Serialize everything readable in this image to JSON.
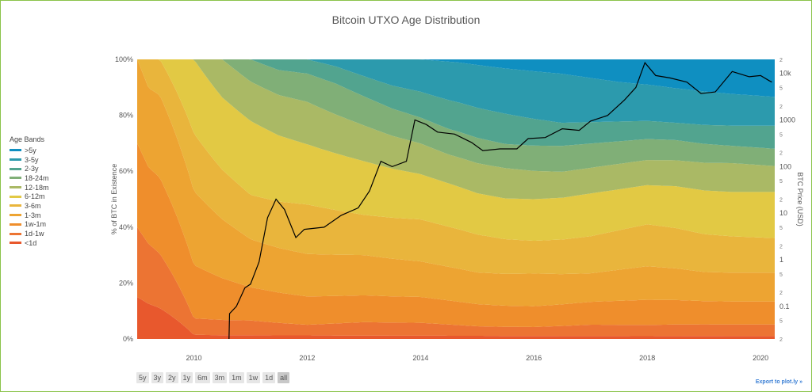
{
  "chart_data": {
    "type": "area",
    "title": "Bitcoin UTXO Age Distribution",
    "ylabel": "% of BTC in Existence",
    "y2label": "BTC Price (USD)",
    "ylim": [
      0,
      100
    ],
    "y_ticks": [
      "0%",
      "20%",
      "40%",
      "60%",
      "80%",
      "100%"
    ],
    "x_ticks": [
      "2010",
      "2012",
      "2014",
      "2016",
      "2018",
      "2020"
    ],
    "xlim": [
      2009.0,
      2020.25
    ],
    "y2_scale": "log",
    "y2lim": [
      0.02,
      20000
    ],
    "y2_major_ticks": [
      "0.1",
      "1",
      "10",
      "100",
      "1000",
      "10k"
    ],
    "y2_minor_tick_label_2": "2",
    "y2_minor_tick_label_5": "5",
    "legend_title": "Age Bands",
    "legend_position": "left",
    "stacking_order_bottom_to_top": [
      "<1d",
      "1d-1w",
      "1w-1m",
      "1-3m",
      "3-6m",
      "6-12m",
      "12-18m",
      "18-24m",
      "2-3y",
      "3-5y",
      ">5y"
    ],
    "series": [
      {
        "name": ">5y",
        "color": "#0f8fc1",
        "x": [
          2009.0,
          2014.0,
          2014.7,
          2015.5,
          2016.5,
          2017.5,
          2018.5,
          2019.5,
          2020.25
        ],
        "values": [
          0,
          0,
          1,
          3,
          5,
          8,
          10,
          12,
          13
        ]
      },
      {
        "name": "3-5y",
        "color": "#2c9aad",
        "x": [
          2009.0,
          2012.0,
          2012.5,
          2013.5,
          2014.5,
          2015.5,
          2016.5,
          2017.5,
          2018.5,
          2019.5,
          2020.25
        ],
        "values": [
          0,
          0,
          2,
          8,
          12,
          15,
          17,
          14,
          12,
          11,
          10
        ]
      },
      {
        "name": "2-3y",
        "color": "#52a48f",
        "x": [
          2009.0,
          2011.0,
          2011.5,
          2013.5,
          2014.5,
          2015.5,
          2016.5,
          2017.5,
          2018.5,
          2019.5,
          2020.25
        ],
        "values": [
          0,
          0,
          3,
          7,
          9,
          10,
          8,
          7,
          6,
          7,
          8
        ]
      },
      {
        "name": "18-24m",
        "color": "#80af77",
        "x": [
          2009.0,
          2010.5,
          2011.0,
          2012.5,
          2014.0,
          2015.5,
          2016.5,
          2017.5,
          2018.5,
          2019.5,
          2020.25
        ],
        "values": [
          0,
          0,
          6,
          9,
          8,
          8,
          9,
          8,
          7,
          6,
          6
        ]
      },
      {
        "name": "12-18m",
        "color": "#aab965",
        "x": [
          2009.0,
          2010.0,
          2010.5,
          2012.0,
          2013.5,
          2014.5,
          2015.5,
          2016.5,
          2017.5,
          2018.5,
          2019.5,
          2020.25
        ],
        "values": [
          0,
          0,
          10,
          12,
          10,
          9,
          10,
          9,
          9,
          9,
          10,
          9
        ]
      },
      {
        "name": "6-12m",
        "color": "#e2c944",
        "x": [
          2009.0,
          2009.4,
          2010.0,
          2011.0,
          2012.0,
          2013.0,
          2014.0,
          2015.0,
          2016.0,
          2017.0,
          2018.0,
          2019.0,
          2020.25
        ],
        "values": [
          0,
          0,
          18,
          20,
          17,
          16,
          14,
          13,
          14,
          15,
          14,
          15,
          16
        ]
      },
      {
        "name": "3-6m",
        "color": "#e9b53c",
        "x": [
          2009.0,
          2009.2,
          2010.0,
          2011.0,
          2012.0,
          2013.0,
          2014.0,
          2015.0,
          2016.0,
          2017.0,
          2018.0,
          2019.0,
          2020.25
        ],
        "values": [
          0,
          10,
          14,
          12,
          14,
          12,
          13,
          12,
          11,
          13,
          15,
          13,
          12
        ]
      },
      {
        "name": "1-3m",
        "color": "#eda432",
        "x": [
          2009.0,
          2010.0,
          2011.0,
          2012.0,
          2013.0,
          2014.0,
          2015.0,
          2016.0,
          2017.0,
          2018.0,
          2019.0,
          2020.25
        ],
        "values": [
          30,
          18,
          13,
          12,
          12,
          11,
          10,
          11,
          10,
          12,
          10,
          10
        ]
      },
      {
        "name": "1w-1m",
        "color": "#ef8e2c",
        "x": [
          2009.0,
          2010.0,
          2011.0,
          2012.0,
          2013.0,
          2014.0,
          2015.0,
          2016.0,
          2017.0,
          2018.0,
          2019.0,
          2020.25
        ],
        "values": [
          30,
          13,
          9,
          8,
          8,
          8,
          7,
          7,
          8,
          9,
          8,
          8
        ]
      },
      {
        "name": "1d-1w",
        "color": "#ec7433",
        "x": [
          2009.0,
          2010.0,
          2011.0,
          2012.0,
          2013.0,
          2014.0,
          2015.0,
          2016.0,
          2017.0,
          2018.0,
          2019.0,
          2020.25
        ],
        "values": [
          25,
          4,
          4,
          3,
          4,
          4,
          3,
          3,
          4,
          4,
          4,
          4
        ]
      },
      {
        "name": "<1d",
        "color": "#e8582d",
        "x": [
          2009.0,
          2010.0,
          2011.0,
          2012.0,
          2013.0,
          2014.0,
          2015.0,
          2016.0,
          2017.0,
          2018.0,
          2019.0,
          2020.25
        ],
        "values": [
          15,
          1,
          1,
          1,
          1,
          1,
          1,
          1,
          1,
          1,
          1,
          1
        ]
      }
    ],
    "price_series": {
      "axis": "y2",
      "color": "#000000",
      "x": [
        2010.62,
        2010.63,
        2010.75,
        2010.9,
        2011.0,
        2011.15,
        2011.3,
        2011.45,
        2011.6,
        2011.8,
        2011.95,
        2012.3,
        2012.6,
        2012.9,
        2013.1,
        2013.3,
        2013.5,
        2013.75,
        2013.9,
        2014.1,
        2014.3,
        2014.6,
        2014.9,
        2015.1,
        2015.4,
        2015.7,
        2015.9,
        2016.2,
        2016.5,
        2016.8,
        2017.0,
        2017.3,
        2017.6,
        2017.8,
        2017.96,
        2018.15,
        2018.4,
        2018.7,
        2018.95,
        2019.2,
        2019.5,
        2019.8,
        2020.0,
        2020.15,
        2020.2
      ],
      "values": [
        0.02,
        0.07,
        0.1,
        0.25,
        0.3,
        0.9,
        8,
        20,
        12,
        3,
        4.5,
        5,
        9,
        13,
        30,
        130,
        100,
        130,
        1000,
        800,
        550,
        500,
        330,
        220,
        240,
        240,
        400,
        420,
        650,
        600,
        950,
        1250,
        2700,
        5000,
        17000,
        9000,
        8000,
        6500,
        3700,
        4000,
        11000,
        8500,
        9000,
        7000,
        6500
      ]
    },
    "range_buttons": [
      "5y",
      "3y",
      "2y",
      "1y",
      "6m",
      "3m",
      "1m",
      "1w",
      "1d",
      "all"
    ],
    "active_range": "all",
    "grid": false,
    "export_label": "Export to plot.ly »"
  }
}
